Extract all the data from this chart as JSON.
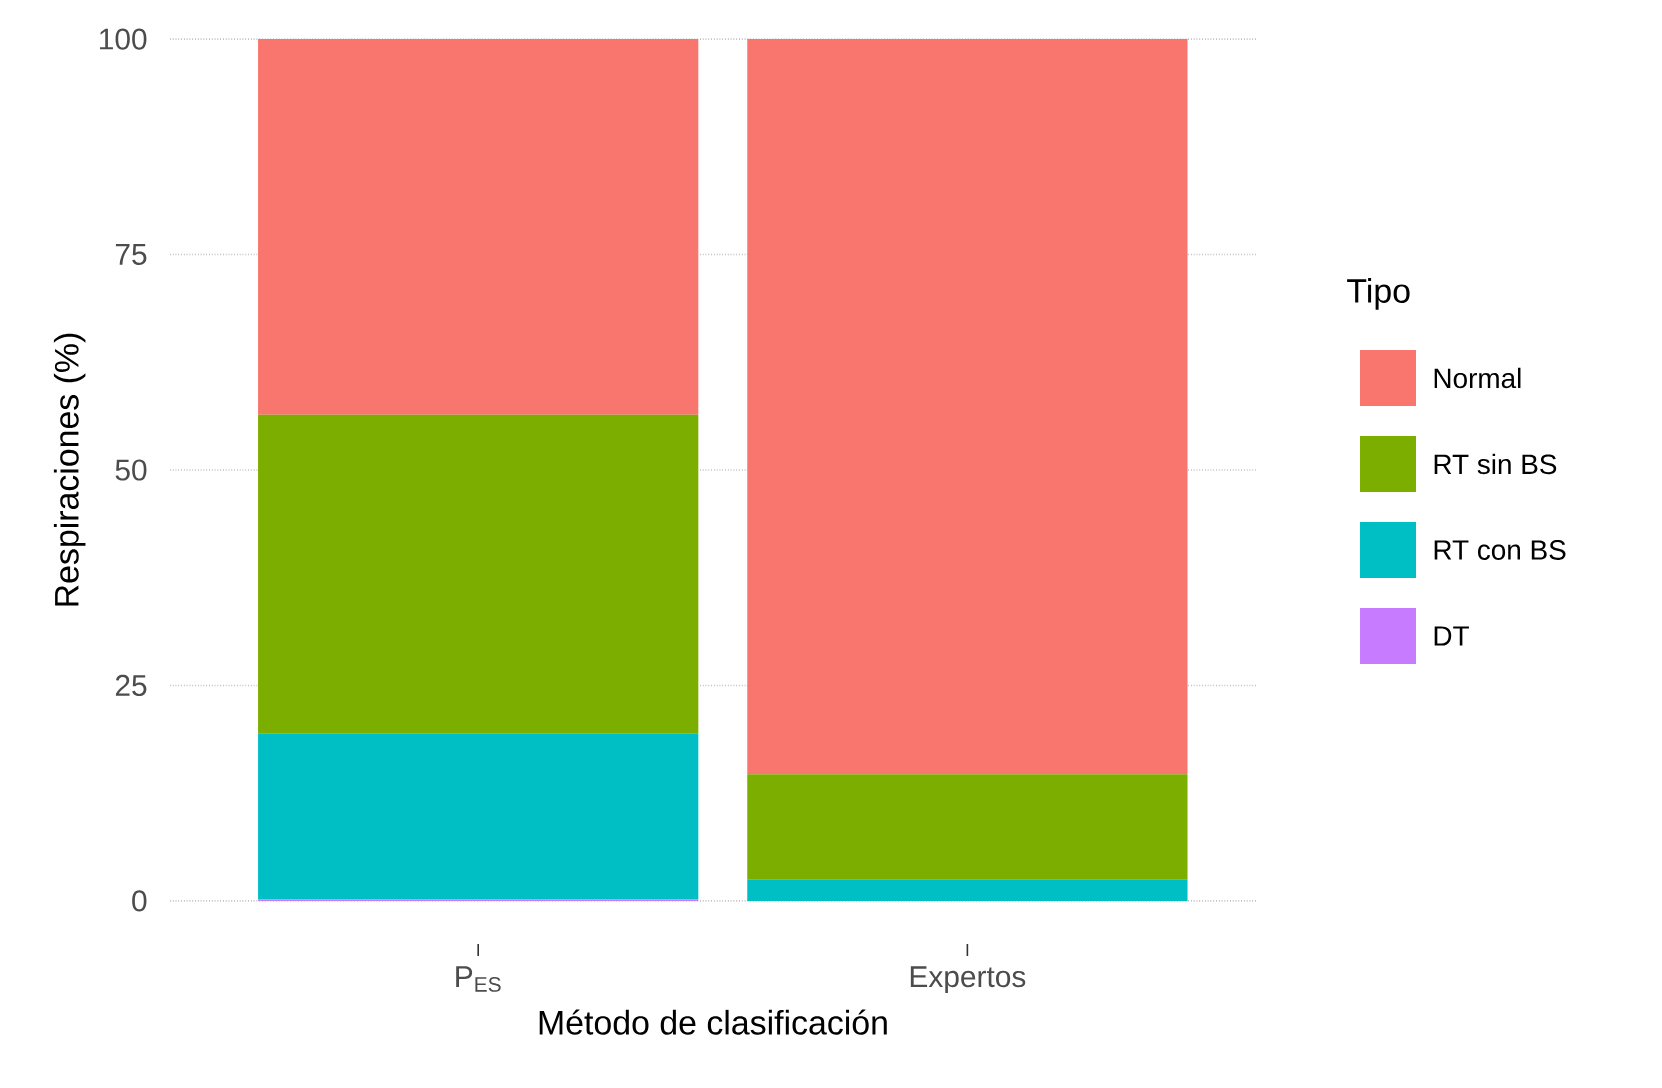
{
  "chart_data": {
    "type": "bar",
    "stacked": true,
    "xlabel": "Método de clasificación",
    "ylabel": "Respiraciones (%)",
    "legend_title": "Tipo",
    "categories": [
      "P$_{ES}$",
      "Expertos"
    ],
    "series": [
      {
        "name": "DT",
        "color": "#c77cff",
        "values": [
          0.2,
          0
        ]
      },
      {
        "name": "RT con BS",
        "color": "#00bfc4",
        "values": [
          19.2,
          2.5
        ]
      },
      {
        "name": "RT sin BS",
        "color": "#7cae00",
        "values": [
          37,
          12.2
        ]
      },
      {
        "name": "Normal",
        "color": "#f8766d",
        "values": [
          43.6,
          85.3
        ]
      }
    ],
    "ylim": [
      0,
      100
    ],
    "yticks": [
      0,
      25,
      50,
      75,
      100
    ],
    "grid": "y",
    "legend": "right"
  }
}
